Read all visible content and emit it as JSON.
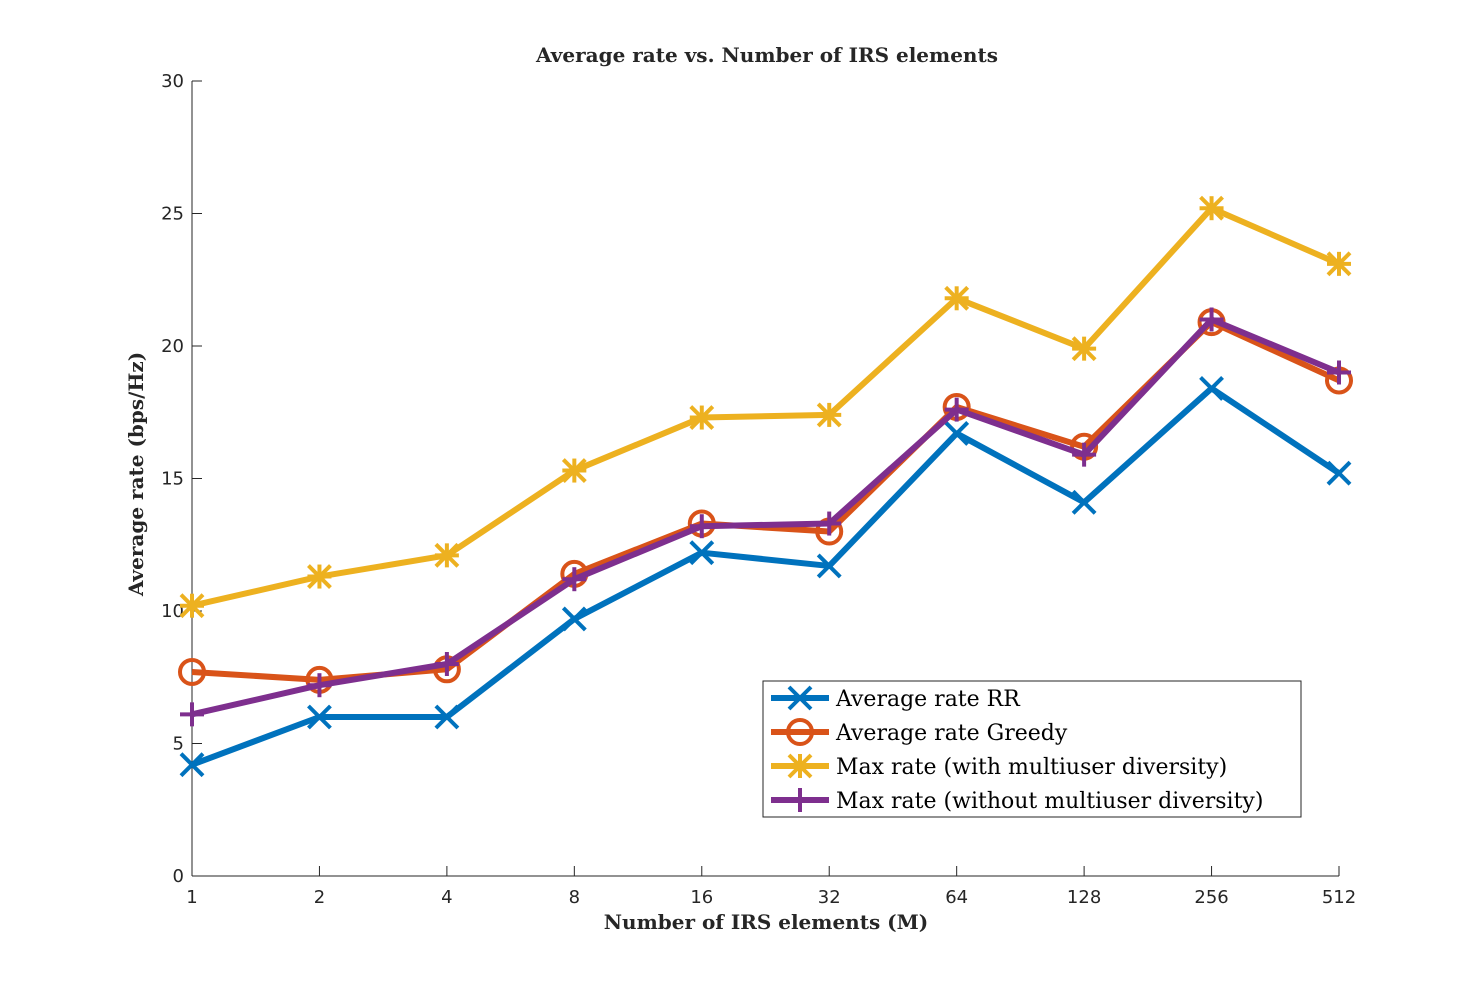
{
  "chart_data": {
    "type": "line",
    "title": "Average rate vs. Number of IRS elements",
    "xlabel": "Number of IRS elements (M)",
    "ylabel": "Average rate (bps/Hz)",
    "categories": [
      "1",
      "2",
      "4",
      "8",
      "16",
      "32",
      "64",
      "128",
      "256",
      "512"
    ],
    "ylim": [
      0,
      30
    ],
    "yticks": [
      "0",
      "5",
      "10",
      "15",
      "20",
      "25",
      "30"
    ],
    "grid": false,
    "legend_position": "bottom-right",
    "series": [
      {
        "name": "Average rate RR",
        "color": "#0072BD",
        "marker": "x",
        "values": [
          4.2,
          6.0,
          6.0,
          9.7,
          12.2,
          11.7,
          16.7,
          14.1,
          18.4,
          15.2
        ]
      },
      {
        "name": "Average rate Greedy",
        "color": "#D95319",
        "marker": "o",
        "values": [
          7.7,
          7.4,
          7.8,
          11.4,
          13.3,
          13.0,
          17.7,
          16.2,
          20.9,
          18.7
        ]
      },
      {
        "name": "Max rate (with multiuser diversity)",
        "color": "#EDB120",
        "marker": "asterisk",
        "values": [
          10.2,
          11.3,
          12.1,
          15.3,
          17.3,
          17.4,
          21.8,
          19.9,
          25.2,
          23.1
        ]
      },
      {
        "name": "Max rate (without multiuser diversity)",
        "color": "#7E2F8E",
        "marker": "plus",
        "values": [
          6.1,
          7.2,
          8.0,
          11.2,
          13.2,
          13.3,
          17.6,
          15.9,
          21.0,
          19.0
        ]
      }
    ]
  }
}
